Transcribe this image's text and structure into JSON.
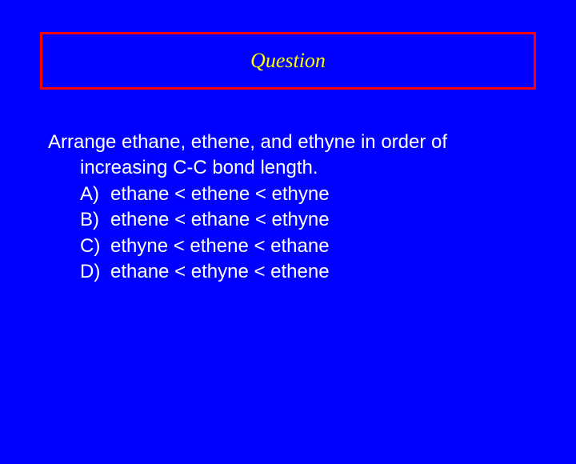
{
  "title": "Question",
  "stem": {
    "line1": "Arrange ethane, ethene, and ethyne in order of",
    "line2": "increasing C-C bond length."
  },
  "options": [
    {
      "letter": "A)",
      "text": "ethane < ethene < ethyne"
    },
    {
      "letter": "B)",
      "text": "ethene < ethane < ethyne"
    },
    {
      "letter": "C)",
      "text": "ethyne < ethene < ethane"
    },
    {
      "letter": "D)",
      "text": "ethane < ethyne < ethene"
    }
  ],
  "colors": {
    "background": "#0000ff",
    "title_border": "#ff0000",
    "title_text": "#ffff00",
    "body_text": "#ffffff"
  }
}
